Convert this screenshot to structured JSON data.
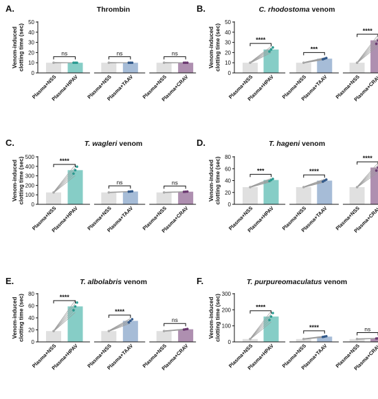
{
  "chart_data": [
    {
      "type": "bar",
      "panel_label": "A.",
      "title": "Thrombin",
      "title_italic": "",
      "title_suffix": "",
      "ylabel": "Venom-induced clotting time (sec)",
      "ylim": [
        0,
        50
      ],
      "yticks": [
        0,
        10,
        20,
        30,
        40,
        50
      ],
      "categories": [
        "Plasma+NSS",
        "Plasma+HPAV",
        "Plasma+NSS",
        "Plasma+TAAV",
        "Plasma+NSS",
        "Plasma+CRAV"
      ],
      "values": [
        10,
        10,
        10,
        10,
        10,
        10
      ],
      "colors": [
        "#e0e0e0",
        "#86cdc6",
        "#e0e0e0",
        "#a6bcd7",
        "#e0e0e0",
        "#ae8fb0"
      ],
      "significance": [
        "ns",
        "ns",
        "ns"
      ]
    },
    {
      "type": "bar",
      "panel_label": "B.",
      "title": "",
      "title_italic": "C. rhodostoma",
      "title_suffix": " venom",
      "ylabel": "Venom-induced clotting time (sec)",
      "ylim": [
        0,
        50
      ],
      "yticks": [
        0,
        10,
        20,
        30,
        40,
        50
      ],
      "categories": [
        "Plasma+NSS",
        "Plasma+HPAV",
        "Plasma+NSS",
        "Plasma+TAAV",
        "Plasma+NSS",
        "Plasma+CRAV"
      ],
      "values": [
        10,
        23,
        10,
        14,
        10,
        32
      ],
      "colors": [
        "#e0e0e0",
        "#86cdc6",
        "#e0e0e0",
        "#a6bcd7",
        "#e0e0e0",
        "#ae8fb0"
      ],
      "significance": [
        "****",
        "***",
        "****"
      ]
    },
    {
      "type": "bar",
      "panel_label": "C.",
      "title": "",
      "title_italic": "T. wagleri",
      "title_suffix": " venom",
      "ylabel": "Venom-induced clotting time (sec)",
      "ylim": [
        0,
        500
      ],
      "yticks": [
        0,
        100,
        200,
        300,
        400,
        500
      ],
      "categories": [
        "Plasma+NSS",
        "Plasma+HPAV",
        "Plasma+NSS",
        "Plasma+TAAV",
        "Plasma+NSS",
        "Plasma+CRAV"
      ],
      "values": [
        125,
        360,
        125,
        135,
        125,
        133
      ],
      "colors": [
        "#e0e0e0",
        "#86cdc6",
        "#e0e0e0",
        "#a6bcd7",
        "#e0e0e0",
        "#ae8fb0"
      ],
      "significance": [
        "****",
        "ns",
        "ns"
      ]
    },
    {
      "type": "bar",
      "panel_label": "D.",
      "title": "",
      "title_italic": "T. hageni",
      "title_suffix": " venom",
      "ylabel": "Venom-induced clotting time (sec)",
      "ylim": [
        0,
        80
      ],
      "yticks": [
        0,
        20,
        40,
        60,
        80
      ],
      "categories": [
        "Plasma+NSS",
        "Plasma+HPAV",
        "Plasma+NSS",
        "Plasma+TAAV",
        "Plasma+NSS",
        "Plasma+CRAV"
      ],
      "values": [
        29,
        41,
        29,
        40,
        29,
        62
      ],
      "colors": [
        "#e0e0e0",
        "#86cdc6",
        "#e0e0e0",
        "#a6bcd7",
        "#e0e0e0",
        "#ae8fb0"
      ],
      "significance": [
        "***",
        "****",
        "****"
      ]
    },
    {
      "type": "bar",
      "panel_label": "E.",
      "title": "",
      "title_italic": "T. albolabris",
      "title_suffix": " venom",
      "ylabel": "Venom-induced clotting time (sec)",
      "ylim": [
        0,
        80
      ],
      "yticks": [
        0,
        20,
        40,
        60,
        80
      ],
      "categories": [
        "Plasma+NSS",
        "Plasma+HPAV",
        "Plasma+NSS",
        "Plasma+TAAV",
        "Plasma+NSS",
        "Plasma+CRAV"
      ],
      "values": [
        18,
        59,
        18,
        35,
        18,
        21
      ],
      "colors": [
        "#e0e0e0",
        "#86cdc6",
        "#e0e0e0",
        "#a6bcd7",
        "#e0e0e0",
        "#ae8fb0"
      ],
      "significance": [
        "****",
        "****",
        "ns"
      ]
    },
    {
      "type": "bar",
      "panel_label": "F.",
      "title": "",
      "title_italic": "T. purpureomaculatus",
      "title_suffix": " venom",
      "ylabel": "Venom-induced clotting time (sec)",
      "ylim": [
        0,
        300
      ],
      "yticks": [
        0,
        100,
        200,
        300
      ],
      "categories": [
        "Plasma+NSS",
        "Plasma+HPAV",
        "Plasma+NSS",
        "Plasma+TAAV",
        "Plasma+NSS",
        "Plasma+CRAV"
      ],
      "values": [
        18,
        158,
        18,
        33,
        18,
        22
      ],
      "colors": [
        "#e0e0e0",
        "#86cdc6",
        "#e0e0e0",
        "#a6bcd7",
        "#e0e0e0",
        "#ae8fb0"
      ],
      "significance": [
        "****",
        "****",
        "ns"
      ]
    }
  ]
}
